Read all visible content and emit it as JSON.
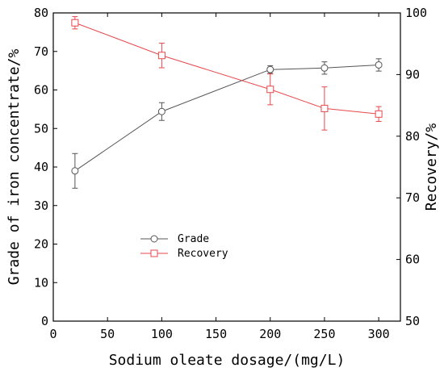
{
  "chart_data": {
    "type": "line",
    "xlabel": "Sodium oleate dosage/(mg/L)",
    "ylabel_left": "Grade of iron concentrate/%",
    "ylabel_right": "Recovery/%",
    "xlim": [
      0,
      320
    ],
    "ylim_left": [
      0,
      80
    ],
    "ylim_right": [
      50,
      100
    ],
    "x_ticks": [
      "0",
      "50",
      "100",
      "150",
      "200",
      "250",
      "300"
    ],
    "y_left_ticks": [
      "0",
      "10",
      "20",
      "30",
      "40",
      "50",
      "60",
      "70",
      "80"
    ],
    "y_right_ticks": [
      "50",
      "60",
      "70",
      "80",
      "90",
      "100"
    ],
    "legend_position": "center-left",
    "series": [
      {
        "name": "Grade",
        "axis": "left",
        "marker": "circle",
        "color": "#555555",
        "x": [
          20,
          100,
          200,
          250,
          300
        ],
        "y": [
          39.0,
          54.4,
          65.3,
          65.7,
          66.5
        ],
        "err": [
          4.5,
          2.3,
          1.0,
          1.6,
          1.6
        ]
      },
      {
        "name": "Recovery",
        "axis": "right",
        "marker": "square",
        "color": "#e8484d",
        "x": [
          20,
          100,
          200,
          250,
          300
        ],
        "y": [
          98.4,
          93.1,
          87.6,
          84.5,
          83.6
        ],
        "err": [
          1.0,
          2.0,
          2.5,
          3.5,
          1.2
        ]
      }
    ]
  }
}
